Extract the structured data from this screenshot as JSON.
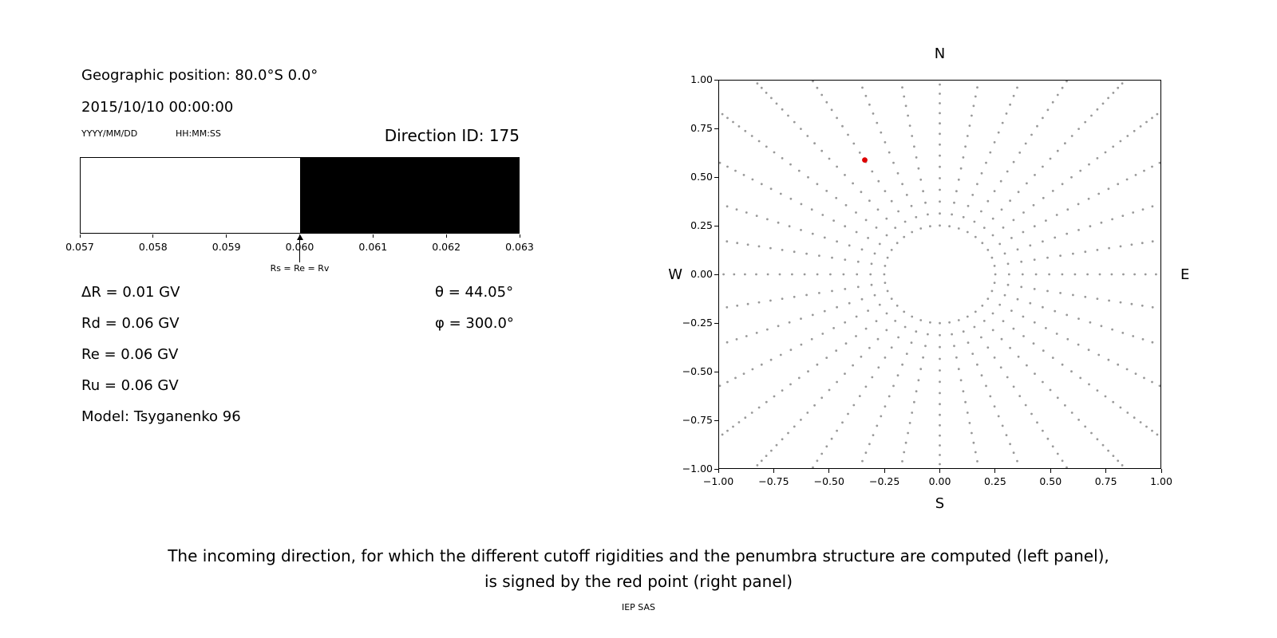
{
  "page": {
    "background": "#ffffff",
    "caption_line1": "The incoming direction, for which the different cutoff rigidities and the penumbra structure are computed (left panel),",
    "caption_line2": "is signed by the red point (right panel)",
    "credit": "IEP SAS"
  },
  "left_panel": {
    "geo_position": "Geographic position: 80.0°S 0.0°",
    "datetime": "2015/10/10 00:00:00",
    "date_format_label": "YYYY/MM/DD",
    "time_format_label": "HH:MM:SS",
    "params": [
      "ΔR = 0.01 GV",
      "Rd = 0.06 GV",
      "Re = 0.06 GV",
      "Ru = 0.06 GV",
      "Model: Tsyganenko 96"
    ],
    "theta": "θ = 44.05°",
    "phi": "φ = 300.0°"
  },
  "chart_data": [
    {
      "type": "bar",
      "name": "penumbra-structure",
      "title": "Direction ID: 175",
      "xlim": [
        0.057,
        0.063
      ],
      "xticks": [
        0.057,
        0.058,
        0.059,
        0.06,
        0.061,
        0.062,
        0.063
      ],
      "xtick_labels": [
        "0.057",
        "0.058",
        "0.059",
        "0.060",
        "0.061",
        "0.062",
        "0.063"
      ],
      "segments": [
        {
          "from": 0.057,
          "to": 0.06,
          "state": "allowed",
          "color": "#ffffff"
        },
        {
          "from": 0.06,
          "to": 0.063,
          "state": "forbidden",
          "color": "#000000"
        }
      ],
      "annotation": {
        "text": "Rs = Re = Rv",
        "x": 0.06
      }
    },
    {
      "type": "scatter",
      "name": "incoming-directions",
      "axis_labels": {
        "top": "N",
        "bottom": "S",
        "left": "W",
        "right": "E"
      },
      "xlim": [
        -1.0,
        1.0
      ],
      "ylim": [
        -1.0,
        1.0
      ],
      "xticks": [
        -1.0,
        -0.75,
        -0.5,
        -0.25,
        0.0,
        0.25,
        0.5,
        0.75,
        1.0
      ],
      "xtick_labels": [
        "−1.00",
        "−0.75",
        "−0.50",
        "−0.25",
        "0.00",
        "0.25",
        "0.50",
        "0.75",
        "1.00"
      ],
      "yticks": [
        -1.0,
        -0.75,
        -0.5,
        -0.25,
        0.0,
        0.25,
        0.5,
        0.75,
        1.0
      ],
      "ytick_labels": [
        "−1.00",
        "−0.75",
        "−0.50",
        "−0.25",
        "0.00",
        "0.25",
        "0.50",
        "0.75",
        "1.00"
      ],
      "grid_points": {
        "description": "Gray dots: grid of candidate incoming directions on azimuth spokes every 10°; radius ≈ 1.45·sin(zenith) for zenith 10°–90° in 2.5° steps, clipped to the axes square",
        "azimuth_step_deg": 10,
        "zenith_start_deg": 10,
        "zenith_end_deg": 90,
        "zenith_step_deg": 2.5,
        "radius_scale": 1.45,
        "color": "#999999"
      },
      "selected_point": {
        "x": -0.34,
        "y": 0.59,
        "color": "#dd0000",
        "label": "red point — selected incoming direction (ID 175)"
      }
    }
  ]
}
